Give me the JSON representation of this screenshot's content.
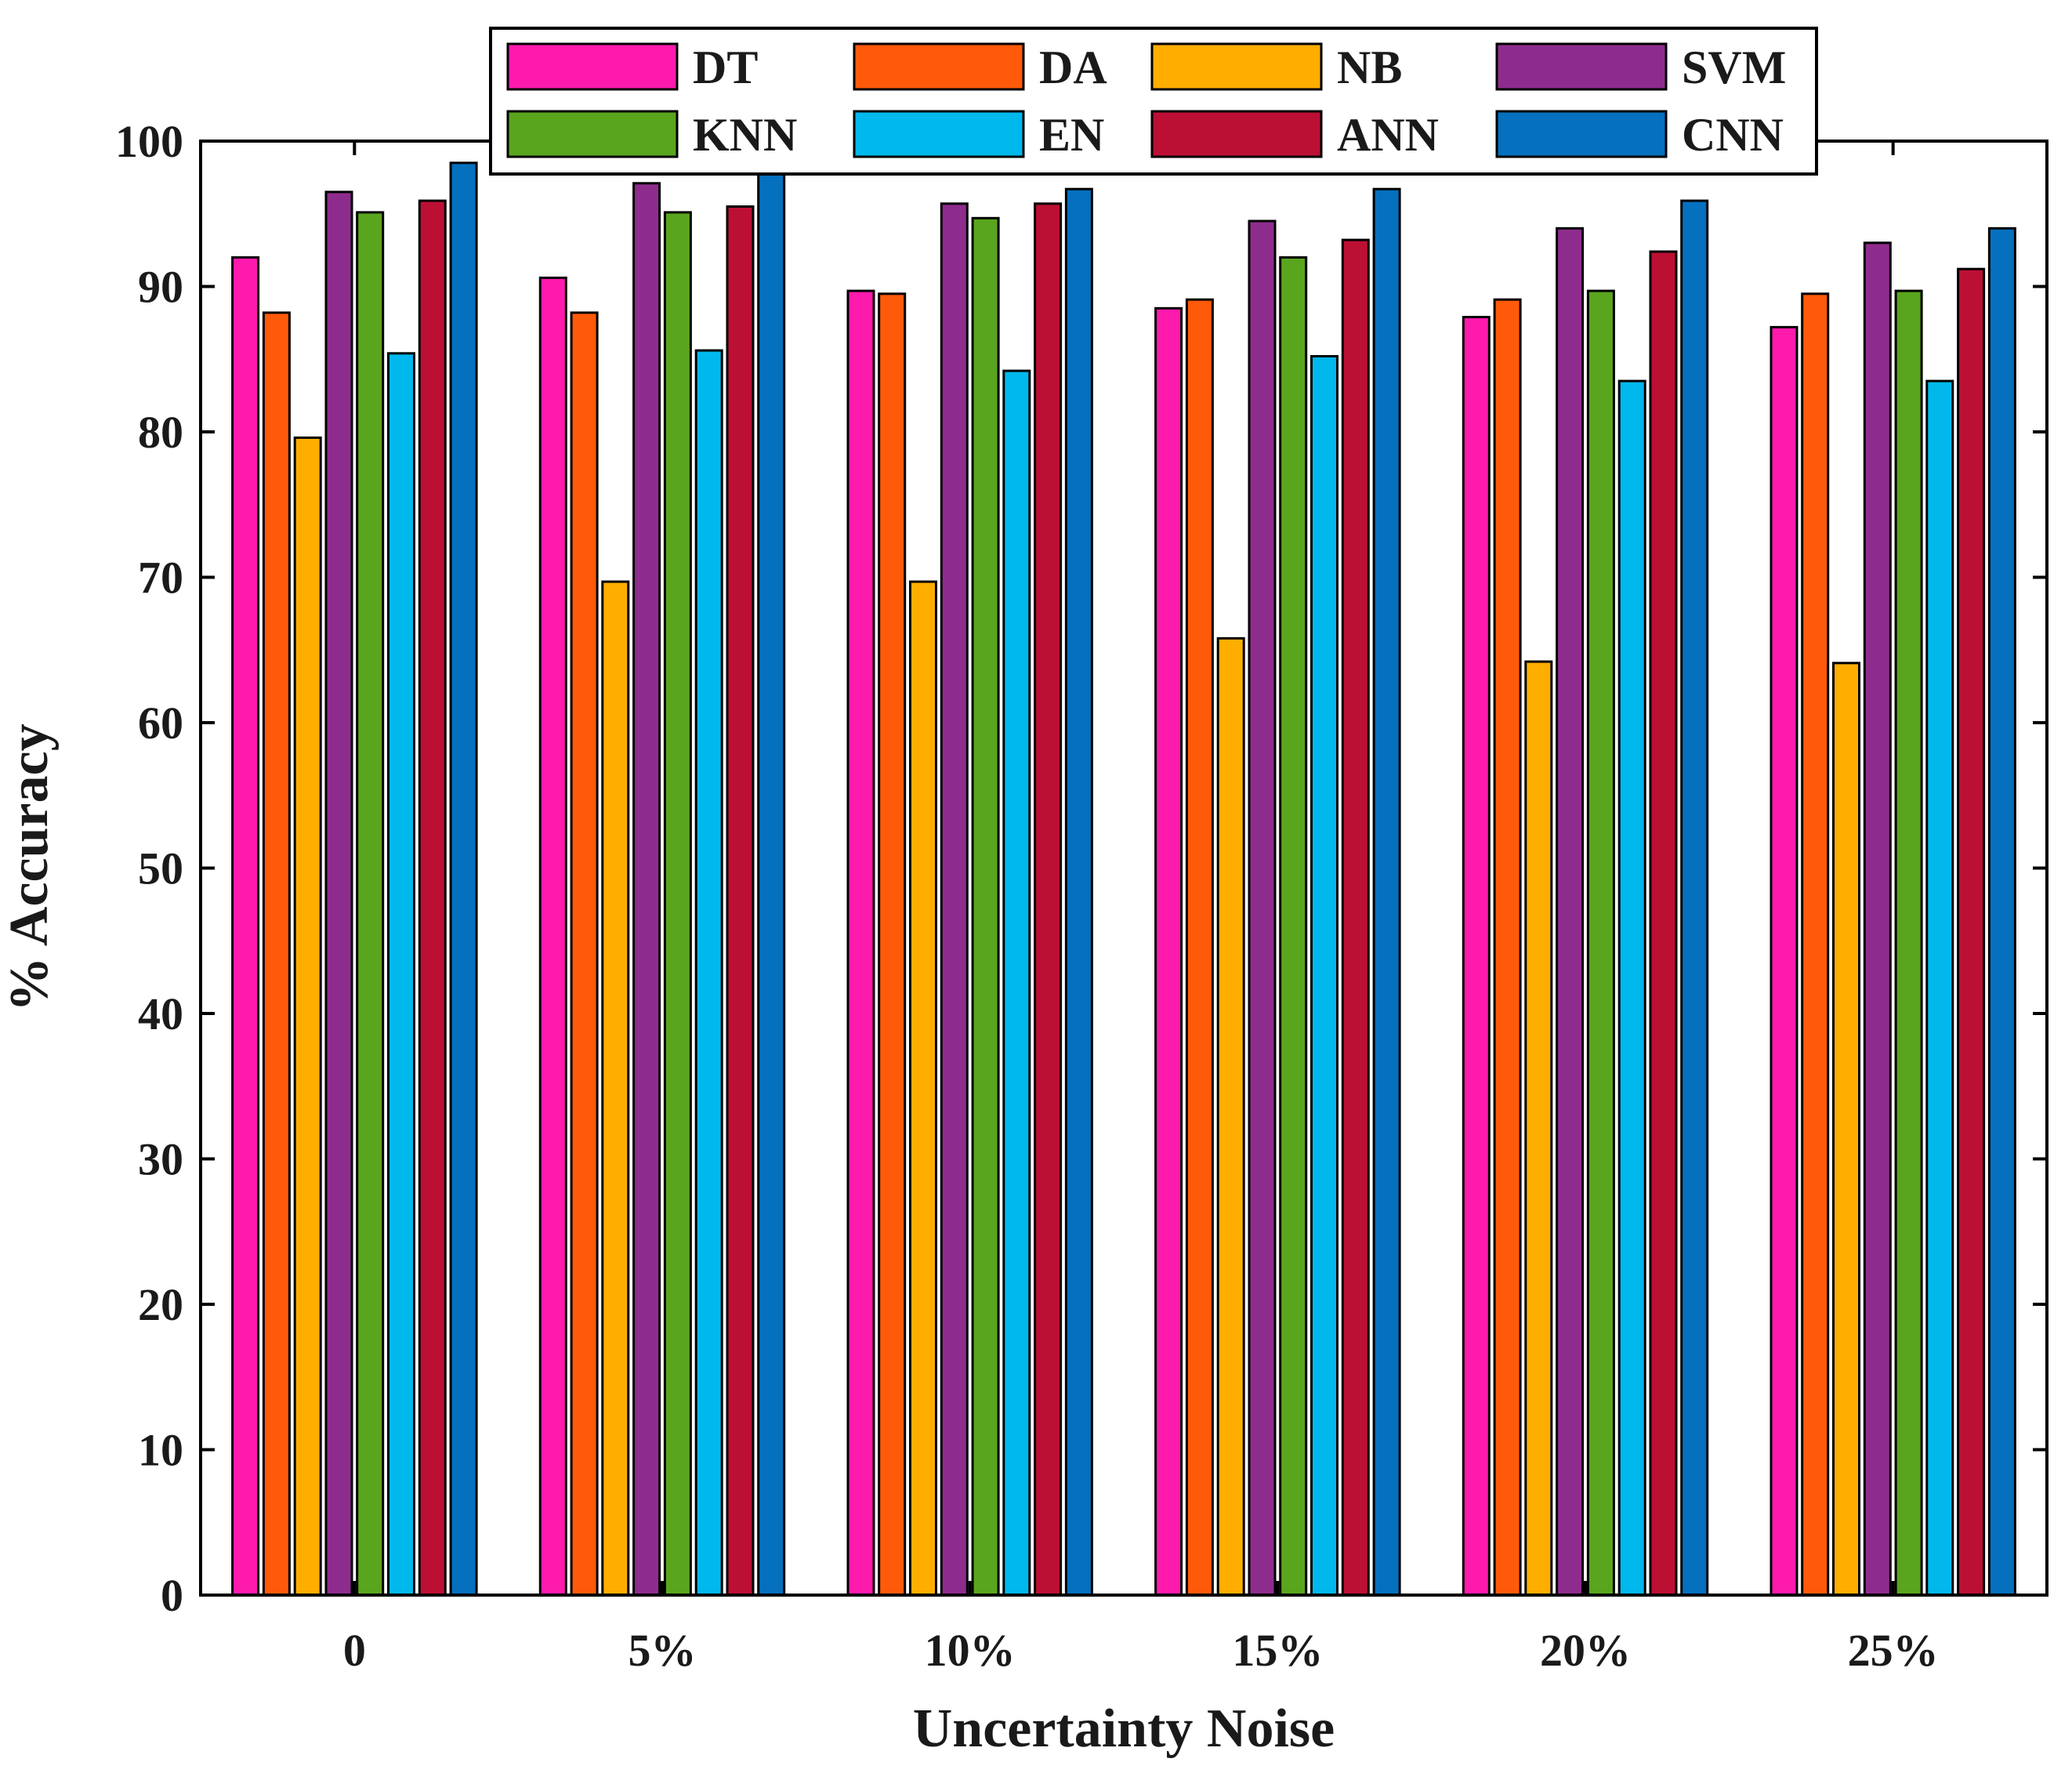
{
  "chart_data": {
    "type": "bar",
    "title": "",
    "xlabel": "Uncertainty Noise",
    "ylabel": "% Accuracy",
    "ylim": [
      0,
      100
    ],
    "yticks": [
      0,
      10,
      20,
      30,
      40,
      50,
      60,
      70,
      80,
      90,
      100
    ],
    "categories": [
      "0",
      "5%",
      "10%",
      "15%",
      "20%",
      "25%"
    ],
    "legend_position": "top",
    "series": [
      {
        "name": "DT",
        "color": "#FF1AAE",
        "values": [
          92.0,
          90.6,
          89.7,
          88.5,
          87.9,
          87.2
        ]
      },
      {
        "name": "DA",
        "color": "#FF5A0A",
        "values": [
          88.2,
          88.2,
          89.5,
          89.1,
          89.1,
          89.5
        ]
      },
      {
        "name": "NB",
        "color": "#FFAE00",
        "values": [
          79.6,
          69.7,
          69.7,
          65.8,
          64.2,
          64.1
        ]
      },
      {
        "name": "SVM",
        "color": "#8E2C8E",
        "values": [
          96.5,
          97.1,
          95.7,
          94.5,
          94.0,
          93.0
        ]
      },
      {
        "name": "KNN",
        "color": "#5AA51E",
        "values": [
          95.1,
          95.1,
          94.7,
          92.0,
          89.7,
          89.7
        ]
      },
      {
        "name": "EN",
        "color": "#00B8EC",
        "values": [
          85.4,
          85.6,
          84.2,
          85.2,
          83.5,
          83.5
        ]
      },
      {
        "name": "ANN",
        "color": "#BC0F34",
        "values": [
          95.9,
          95.5,
          95.7,
          93.2,
          92.4,
          91.2
        ]
      },
      {
        "name": "CNN",
        "color": "#0570BE",
        "values": [
          98.5,
          98.8,
          96.7,
          96.7,
          95.9,
          94.0
        ]
      }
    ]
  }
}
